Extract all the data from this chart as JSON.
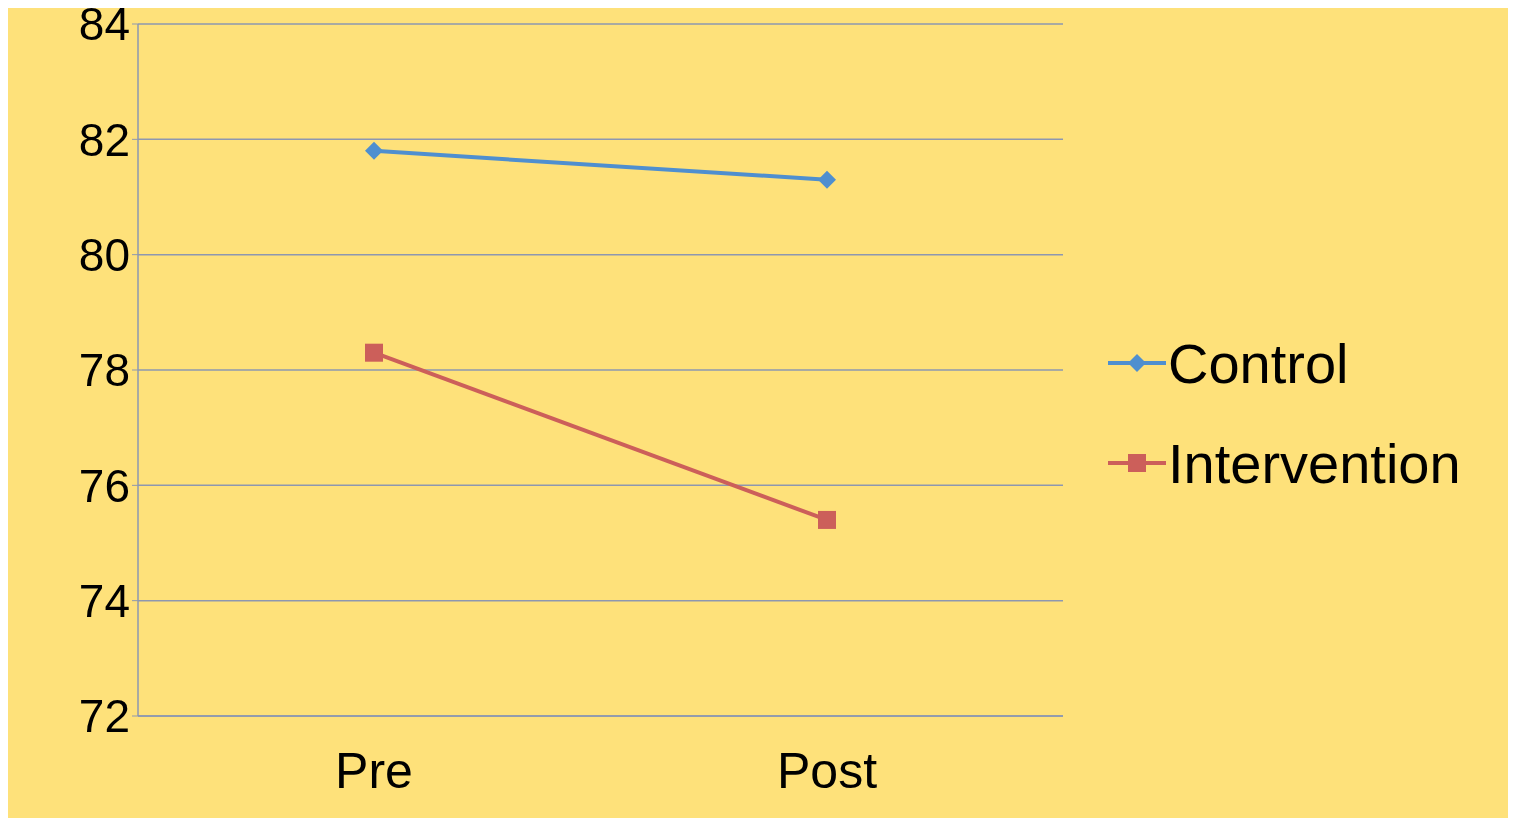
{
  "chart_data": {
    "type": "line",
    "categories": [
      "Pre",
      "Post"
    ],
    "series": [
      {
        "name": "Control",
        "color": "#4f8fcf",
        "values": [
          81.8,
          81.3
        ],
        "marker": "diamond"
      },
      {
        "name": "Intervention",
        "color": "#cc5f5a",
        "values": [
          78.3,
          75.4
        ],
        "marker": "square"
      }
    ],
    "ylim": [
      72,
      84
    ],
    "yticks": [
      72,
      74,
      76,
      78,
      80,
      82,
      84
    ],
    "grid": "y",
    "legend": "right",
    "line_style": "solid"
  }
}
